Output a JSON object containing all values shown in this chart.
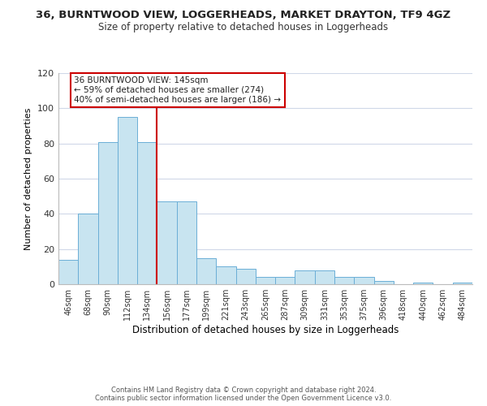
{
  "title": "36, BURNTWOOD VIEW, LOGGERHEADS, MARKET DRAYTON, TF9 4GZ",
  "subtitle": "Size of property relative to detached houses in Loggerheads",
  "xlabel": "Distribution of detached houses by size in Loggerheads",
  "ylabel": "Number of detached properties",
  "bar_labels": [
    "46sqm",
    "68sqm",
    "90sqm",
    "112sqm",
    "134sqm",
    "156sqm",
    "177sqm",
    "199sqm",
    "221sqm",
    "243sqm",
    "265sqm",
    "287sqm",
    "309sqm",
    "331sqm",
    "353sqm",
    "375sqm",
    "396sqm",
    "418sqm",
    "440sqm",
    "462sqm",
    "484sqm"
  ],
  "bar_values": [
    14,
    40,
    81,
    95,
    81,
    47,
    47,
    15,
    10,
    9,
    4,
    4,
    8,
    8,
    4,
    4,
    2,
    0,
    1,
    0,
    1
  ],
  "bar_color": "#c8e4f0",
  "bar_edge_color": "#6baed6",
  "vline_x": 4.5,
  "vline_color": "#cc0000",
  "ylim": [
    0,
    120
  ],
  "yticks": [
    0,
    20,
    40,
    60,
    80,
    100,
    120
  ],
  "annotation_text_line1": "36 BURNTWOOD VIEW: 145sqm",
  "annotation_text_line2": "← 59% of detached houses are smaller (274)",
  "annotation_text_line3": "40% of semi-detached houses are larger (186) →",
  "footer_line1": "Contains HM Land Registry data © Crown copyright and database right 2024.",
  "footer_line2": "Contains public sector information licensed under the Open Government Licence v3.0.",
  "background_color": "#ffffff",
  "grid_color": "#d0d8e8"
}
